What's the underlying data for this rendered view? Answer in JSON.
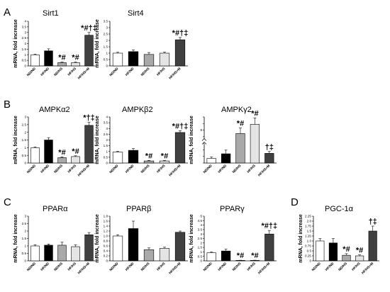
{
  "panels": [
    {
      "letter": "A"
    },
    {
      "letter": "B"
    },
    {
      "letter": "C"
    },
    {
      "letter": "D"
    }
  ],
  "colors": {
    "ND/ND": "#ffffff",
    "HF/ND": "#000000",
    "ND/HS": "#a9a9a9",
    "HF/HS": "#e4e4e4",
    "HF/HS+M": "#404040"
  },
  "chart_data": [
    {
      "type": "bar",
      "panel": "A",
      "title": "Sirt1",
      "ylabel": "mRNA, fold increase",
      "categories": [
        "ND/ND",
        "HF/ND",
        "ND/HS",
        "HF/HS",
        "HF/HS+M"
      ],
      "values": [
        1.0,
        1.35,
        0.3,
        0.3,
        2.75
      ],
      "errors": [
        0.05,
        0.18,
        0.05,
        0.05,
        0.25
      ],
      "yticks": [
        "0",
        "0.5",
        "1",
        "1.5",
        "2",
        "2.5",
        "3",
        "3.5",
        "4"
      ],
      "ylim": [
        0,
        4
      ],
      "annotations": [
        "",
        "",
        "*#",
        "*#",
        "*#†‡"
      ]
    },
    {
      "type": "bar",
      "panel": "A",
      "title": "Sirt4",
      "ylabel": "mRNA, fold increase",
      "categories": [
        "ND/ND",
        "HF/ND",
        "ND/HS",
        "HF/HS",
        "HF/HS+M"
      ],
      "values": [
        1.0,
        1.12,
        0.9,
        1.0,
        2.05
      ],
      "errors": [
        0.07,
        0.13,
        0.15,
        0.08,
        0.18
      ],
      "yticks": [
        "0",
        "0.5",
        "1",
        "1.5",
        "2",
        "2.5",
        "3",
        "3.5"
      ],
      "ylim": [
        0,
        3.5
      ],
      "annotations": [
        "",
        "",
        "",
        "",
        "*#†‡"
      ]
    },
    {
      "type": "bar",
      "panel": "B",
      "title": "AMPKα2",
      "ylabel": "mRNA, fold increase",
      "categories": [
        "ND/ND",
        "HF/ND",
        "ND/HS",
        "HF/HS",
        "HF/HS+M"
      ],
      "values": [
        1.0,
        1.5,
        0.35,
        0.42,
        2.45
      ],
      "errors": [
        0.05,
        0.15,
        0.05,
        0.05,
        0.2
      ],
      "yticks": [
        "0",
        "0.5",
        "1",
        "1.5",
        "2",
        "2.5",
        "3"
      ],
      "ylim": [
        0,
        3
      ],
      "annotations": [
        "",
        "",
        "*#",
        "*#",
        "*†‡"
      ]
    },
    {
      "type": "bar",
      "panel": "B",
      "title": "AMPKβ2",
      "ylabel": "mRNA, fold increase",
      "categories": [
        "ND/ND",
        "HF/ND",
        "ND/HS",
        "HF/HS",
        "HF/HS+M"
      ],
      "values": [
        0.95,
        1.1,
        0.18,
        0.18,
        2.65
      ],
      "errors": [
        0.06,
        0.15,
        0.05,
        0.05,
        0.15
      ],
      "yticks": [
        "0",
        "0.5",
        "1",
        "1.5",
        "2",
        "2.5",
        "3",
        "3.5",
        "4"
      ],
      "ylim": [
        0,
        4
      ],
      "annotations": [
        "",
        "",
        "*#",
        "*#",
        "*#†‡"
      ]
    },
    {
      "type": "bar",
      "panel": "B",
      "title": "AMPKγ2",
      "ylabel": "mRNA, fold increase",
      "categories": [
        "ND/ND",
        "HF/ND",
        "ND/HS",
        "HF/HS",
        "HF/HS+M"
      ],
      "values": [
        0.5,
        1.0,
        3.2,
        4.2,
        1.05
      ],
      "errors": [
        0.15,
        0.4,
        0.6,
        0.7,
        0.2
      ],
      "yticks": [
        "",
        "",
        "",
        "",
        "",
        "8",
        "",
        ""
      ],
      "ylim": [
        0,
        5
      ],
      "axis_break": true,
      "annotations": [
        "",
        "",
        "*#",
        "*#",
        "†‡"
      ]
    },
    {
      "type": "bar",
      "panel": "C",
      "title": "PPARα",
      "ylabel": "mRNA, fold increase",
      "categories": [
        "ND/ND",
        "HF/ND",
        "ND/HS",
        "HF/HS",
        "HF/HS+M"
      ],
      "values": [
        1.0,
        1.05,
        1.05,
        0.95,
        1.75
      ],
      "errors": [
        0.08,
        0.08,
        0.2,
        0.12,
        0.15
      ],
      "yticks": [
        "0",
        "0.5",
        "1",
        "1.5",
        "2",
        "2.5",
        "3"
      ],
      "ylim": [
        0,
        3
      ],
      "annotations": [
        "",
        "",
        "",
        "",
        ""
      ]
    },
    {
      "type": "bar",
      "panel": "C",
      "title": "PPARβ",
      "ylabel": "mRNA, fold increase",
      "categories": [
        "ND/ND",
        "HF/ND",
        "ND/HS",
        "HF/HS",
        "HF/HS+M"
      ],
      "values": [
        1.0,
        1.3,
        0.45,
        0.5,
        1.15
      ],
      "errors": [
        0.05,
        0.3,
        0.07,
        0.05,
        0.05
      ],
      "yticks": [
        "0",
        "0.2",
        "0.4",
        "0.6",
        "0.8",
        "1.0",
        "1.2",
        "1.4",
        "1.6",
        "1.8"
      ],
      "ylim": [
        0,
        1.8
      ],
      "annotations": [
        "",
        "",
        "",
        "",
        ""
      ]
    },
    {
      "type": "bar",
      "panel": "C",
      "title": "PPARγ",
      "ylabel": "mRNA, fold increase",
      "categories": [
        "ND/ND",
        "HF/ND",
        "ND/HS",
        "HF/HS",
        "HF/HS+M"
      ],
      "values": [
        0.9,
        1.1,
        0.05,
        0.05,
        3.0
      ],
      "errors": [
        0.08,
        0.2,
        0.02,
        0.02,
        0.4
      ],
      "yticks": [
        "0",
        "0.5",
        "1",
        "1.5",
        "2",
        "2.5",
        "3",
        "3.5",
        "4",
        "4.5",
        "5"
      ],
      "ylim": [
        0,
        5
      ],
      "annotations": [
        "",
        "",
        "*#",
        "*#",
        "*#†‡"
      ]
    },
    {
      "type": "bar",
      "panel": "D",
      "title": "PGC-1α",
      "ylabel": "mRNA, fold increase",
      "categories": [
        "ND/ND",
        "HF/ND",
        "ND/HS",
        "HF/HS",
        "HF/HS+M"
      ],
      "values": [
        1.0,
        0.9,
        0.28,
        0.25,
        1.5
      ],
      "errors": [
        0.12,
        0.22,
        0.08,
        0.05,
        0.25
      ],
      "yticks": [
        "0",
        "0.25",
        "0.5",
        "0.75",
        "1.0",
        "1.25",
        "1.5",
        "1.75",
        "2.0",
        "2.25"
      ],
      "ylim": [
        0,
        2.25
      ],
      "annotations": [
        "",
        "",
        "*#",
        "*#",
        "†‡"
      ]
    }
  ]
}
